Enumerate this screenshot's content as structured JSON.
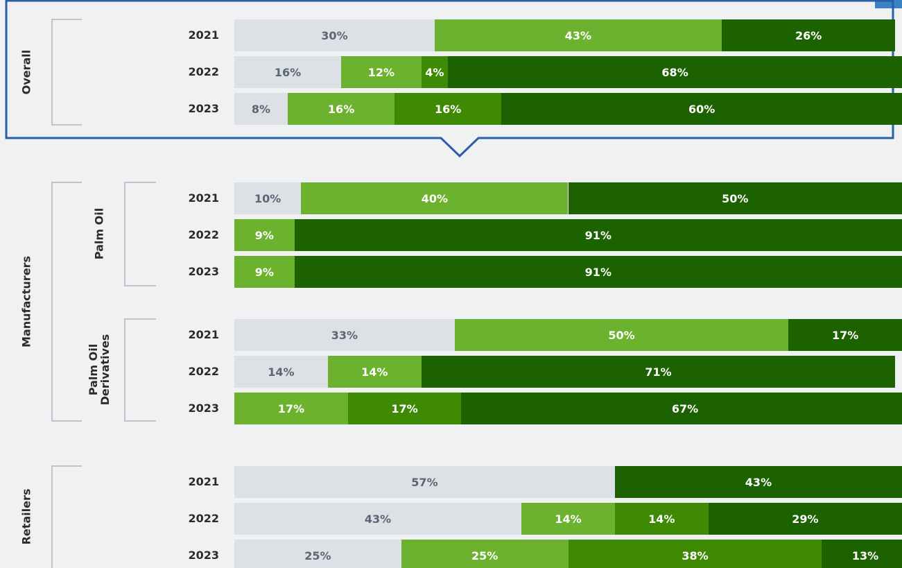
{
  "chart_data": [
    {
      "type": "stacked_bar",
      "group": "Overall",
      "categories": [
        "2021",
        "2022",
        "2023"
      ],
      "xlim": [
        0,
        100
      ],
      "series": [
        {
          "color": "#dde0e4",
          "values": [
            30,
            16,
            8
          ],
          "value_labels": [
            "30%",
            "16%",
            "8%"
          ]
        },
        {
          "color": "#6cb22f",
          "values": [
            43,
            12,
            16
          ],
          "value_labels": [
            "43%",
            "12%",
            "16%"
          ]
        },
        {
          "color": "#3e8a05",
          "values": [
            null,
            4,
            16
          ],
          "value_labels": [
            null,
            "4%",
            "16%"
          ]
        },
        {
          "color": "#1c6200",
          "values": [
            26,
            68,
            60
          ],
          "value_labels": [
            "26%",
            "68%",
            "60%"
          ]
        }
      ]
    },
    {
      "type": "stacked_bar",
      "group": "Manufacturers",
      "subgroup": "Palm Oil",
      "categories": [
        "2021",
        "2022",
        "2023"
      ],
      "xlim": [
        0,
        100
      ],
      "series": [
        {
          "color": "#dde0e4",
          "values": [
            10,
            null,
            null
          ],
          "value_labels": [
            "10%",
            null,
            null
          ]
        },
        {
          "color": "#6cb22f",
          "values": [
            40,
            9,
            9
          ],
          "value_labels": [
            "40%",
            "9%",
            "9%"
          ]
        },
        {
          "color": "#3e8a05",
          "values": [
            null,
            null,
            null
          ],
          "value_labels": [
            null,
            null,
            null
          ]
        },
        {
          "color": "#1c6200",
          "values": [
            50,
            91,
            91
          ],
          "value_labels": [
            "50%",
            "91%",
            "91%"
          ]
        }
      ]
    },
    {
      "type": "stacked_bar",
      "subgroup": "Palm Oil Derivatives",
      "categories": [
        "2021",
        "2022",
        "2023"
      ],
      "xlim": [
        0,
        100
      ],
      "series": [
        {
          "color": "#dde0e4",
          "values": [
            33,
            14,
            null
          ],
          "value_labels": [
            "33%",
            "14%",
            null
          ]
        },
        {
          "color": "#6cb22f",
          "values": [
            50,
            14,
            17
          ],
          "value_labels": [
            "50%",
            "14%",
            "17%"
          ]
        },
        {
          "color": "#3e8a05",
          "values": [
            null,
            null,
            17
          ],
          "value_labels": [
            null,
            null,
            "17%"
          ]
        },
        {
          "color": "#1c6200",
          "values": [
            17,
            71,
            67
          ],
          "value_labels": [
            "17%",
            "71%",
            "67%"
          ]
        }
      ]
    },
    {
      "type": "stacked_bar",
      "group": "Retailers",
      "categories": [
        "2021",
        "2022",
        "2023"
      ],
      "xlim": [
        0,
        100
      ],
      "series": [
        {
          "color": "#dde0e4",
          "values": [
            57,
            43,
            25
          ],
          "value_labels": [
            "57%",
            "43%",
            "25%"
          ]
        },
        {
          "color": "#6cb22f",
          "values": [
            null,
            14,
            25
          ],
          "value_labels": [
            null,
            "14%",
            "25%"
          ]
        },
        {
          "color": "#3e8a05",
          "values": [
            null,
            14,
            38
          ],
          "value_labels": [
            null,
            "14%",
            "38%"
          ]
        },
        {
          "color": "#1c6200",
          "values": [
            43,
            29,
            13
          ],
          "value_labels": [
            "43%",
            "29%",
            "13%"
          ]
        }
      ]
    }
  ]
}
